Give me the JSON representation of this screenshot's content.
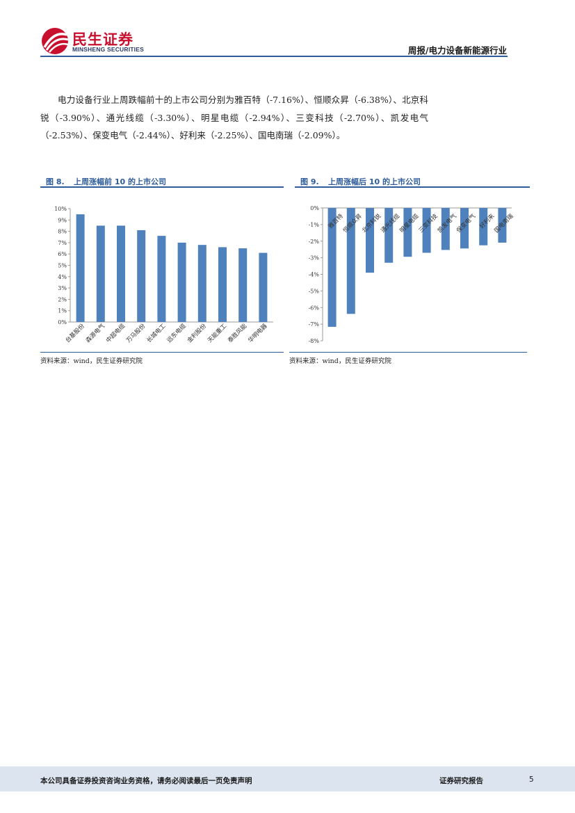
{
  "header": {
    "logo_cn": "民生证券",
    "logo_en": "MINSHENG SECURITIES",
    "report_type": "周报/电力设备新能源行业"
  },
  "paragraph": "电力设备行业上周跌幅前十的上市公司分别为雅百特（-7.16%）、恒顺众昇（-6.38%）、北京科锐（-3.90%）、通光线缆（-3.30%）、明星电缆（-2.94%）、三变科技（-2.70%）、凯发电气（-2.53%）、保变电气（-2.44%）、好利来（-2.25%）、国电南瑞（-2.09%）。",
  "figures": {
    "left": {
      "number": "图 8.",
      "title": "上周涨幅前 10 的上市公司",
      "source": "资料来源：wind，民生证券研究院"
    },
    "right": {
      "number": "图 9.",
      "title": "上周涨幅后 10 的上市公司",
      "source": "资料来源：wind，民生证券研究院"
    }
  },
  "chart_data": [
    {
      "type": "bar",
      "title": "上周涨幅前 10 的上市公司",
      "categories": [
        "台基股份",
        "森源电气",
        "中超电缆",
        "万马股份",
        "长城电工",
        "远东电缆",
        "金利股份",
        "天能重工",
        "泰胜风能",
        "华明电器"
      ],
      "values": [
        9.5,
        8.5,
        8.5,
        8.1,
        7.6,
        7.0,
        6.8,
        6.6,
        6.5,
        6.1
      ],
      "ylim": [
        0,
        10
      ],
      "yticks": [
        "0%",
        "1%",
        "2%",
        "3%",
        "4%",
        "5%",
        "6%",
        "7%",
        "8%",
        "9%",
        "10%"
      ],
      "unit": "%",
      "color": "#4f81bd"
    },
    {
      "type": "bar",
      "title": "上周涨幅后 10 的上市公司",
      "categories": [
        "雅百特",
        "恒顺众昇",
        "北京科锐",
        "通光线缆",
        "明星电缆",
        "三变科技",
        "凯发电气",
        "保变电气",
        "好利来",
        "国电南瑞"
      ],
      "values": [
        -7.16,
        -6.38,
        -3.9,
        -3.3,
        -2.94,
        -2.7,
        -2.53,
        -2.44,
        -2.25,
        -2.09
      ],
      "ylim": [
        -8,
        0
      ],
      "yticks": [
        "0%",
        "-1%",
        "-2%",
        "-3%",
        "-4%",
        "-5%",
        "-6%",
        "-7%",
        "-8%"
      ],
      "unit": "%",
      "color": "#4f81bd"
    }
  ],
  "footer": {
    "disclaimer": "本公司具备证券投资咨询业务资格，请务必阅读最后一页免责声明",
    "label": "证券研究报告",
    "page": "5"
  }
}
